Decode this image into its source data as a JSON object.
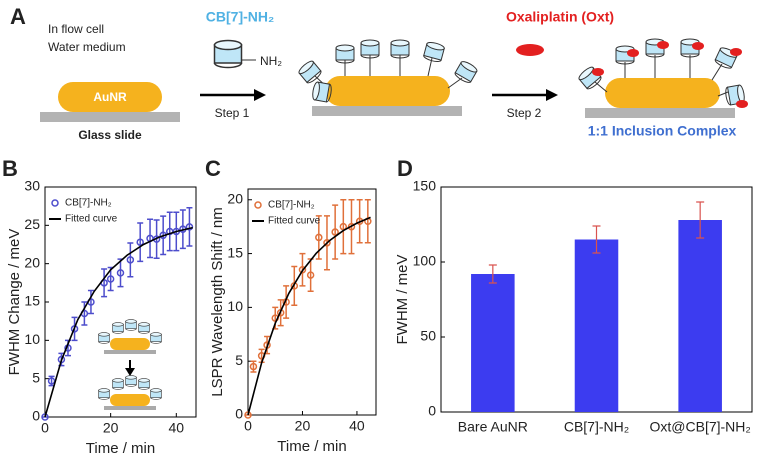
{
  "panel_a": {
    "label": "A",
    "flow_cell": "In flow cell",
    "medium": "Water medium",
    "rod": "AuNR",
    "slide": "Glass slide",
    "reagent": "CB[7]-NH₂",
    "group": "NH₂",
    "step1": "Step 1",
    "drug": "Oxaliplatin (Oxt)",
    "step2": "Step 2",
    "complex": "1:1 Inclusion Complex"
  },
  "chart_data": [
    {
      "type": "scatter",
      "panel_label": "B",
      "x_label": "Time / min",
      "y_label": "FWHM Change / meV",
      "xlim": [
        0,
        46
      ],
      "ylim": [
        0,
        30
      ],
      "xticks": [
        0,
        20,
        40
      ],
      "yticks": [
        0,
        5,
        10,
        15,
        20,
        25,
        30
      ],
      "legend": "upper left",
      "series": [
        {
          "name": "CB[7]-NH₂",
          "color": "#4d4dcc",
          "x": [
            0,
            2,
            5,
            7,
            9,
            12,
            14,
            18,
            20,
            23,
            26,
            29,
            32,
            34,
            36,
            38,
            40,
            42,
            44
          ],
          "values": [
            0,
            4.7,
            7.5,
            9,
            11.5,
            13.5,
            15,
            17.5,
            18,
            18.8,
            20.5,
            22.8,
            23.3,
            23.2,
            23.7,
            24.2,
            24.2,
            24.5,
            24.8
          ],
          "errors": [
            0,
            0.6,
            0.8,
            1,
            1.5,
            1.5,
            1.5,
            1.8,
            1.5,
            1.8,
            2.2,
            2.5,
            2.5,
            2.5,
            2.5,
            2.5,
            2.5,
            2.5,
            2.5
          ]
        },
        {
          "name": "Fitted curve",
          "type": "line",
          "color": "#000000",
          "x": [
            0,
            5,
            10,
            15,
            20,
            25,
            30,
            35,
            40,
            45
          ],
          "values": [
            0,
            7.4,
            12.7,
            16.4,
            19.2,
            21.1,
            22.5,
            23.5,
            24.2,
            24.7
          ]
        }
      ]
    },
    {
      "type": "scatter",
      "panel_label": "C",
      "x_label": "Time / min",
      "y_label": "LSPR Wavelength Shift / nm",
      "xlim": [
        0,
        47
      ],
      "ylim": [
        0,
        21
      ],
      "xticks": [
        0,
        20,
        40
      ],
      "yticks": [
        0,
        5,
        10,
        15,
        20
      ],
      "legend": "upper left",
      "series": [
        {
          "name": "CB[7]-NH₂",
          "color": "#e0703a",
          "x": [
            0,
            2,
            5,
            7,
            10,
            12,
            14,
            17,
            20,
            23,
            26,
            29,
            32,
            35,
            38,
            41,
            44
          ],
          "values": [
            0,
            4.5,
            5.5,
            6.5,
            9,
            9.5,
            10.5,
            12,
            13.5,
            13,
            16.5,
            16,
            17,
            17.5,
            17.5,
            18,
            18
          ],
          "errors": [
            0,
            0.5,
            0.6,
            0.8,
            1,
            1.2,
            1.5,
            1.8,
            1.5,
            1.5,
            2,
            2.5,
            2.5,
            2.5,
            2.5,
            2,
            2
          ]
        },
        {
          "name": "Fitted curve",
          "type": "line",
          "color": "#000000",
          "x": [
            0,
            5,
            10,
            15,
            20,
            25,
            30,
            35,
            40,
            45
          ],
          "values": [
            0,
            4.85,
            8.52,
            11.31,
            13.42,
            15.01,
            16.22,
            17.14,
            17.83,
            18.36
          ]
        }
      ]
    },
    {
      "type": "bar",
      "panel_label": "D",
      "y_label": "FWHM / meV",
      "categories": [
        "Bare AuNR",
        "CB[7]-NH₂",
        "Oxt@CB[7]-NH₂"
      ],
      "values": [
        92,
        115,
        128
      ],
      "errors": [
        6,
        9,
        12
      ],
      "color": "#3c3cf0",
      "error_color": "#d9534f",
      "ylim": [
        0,
        150
      ],
      "yticks": [
        0,
        50,
        100,
        150
      ]
    }
  ]
}
